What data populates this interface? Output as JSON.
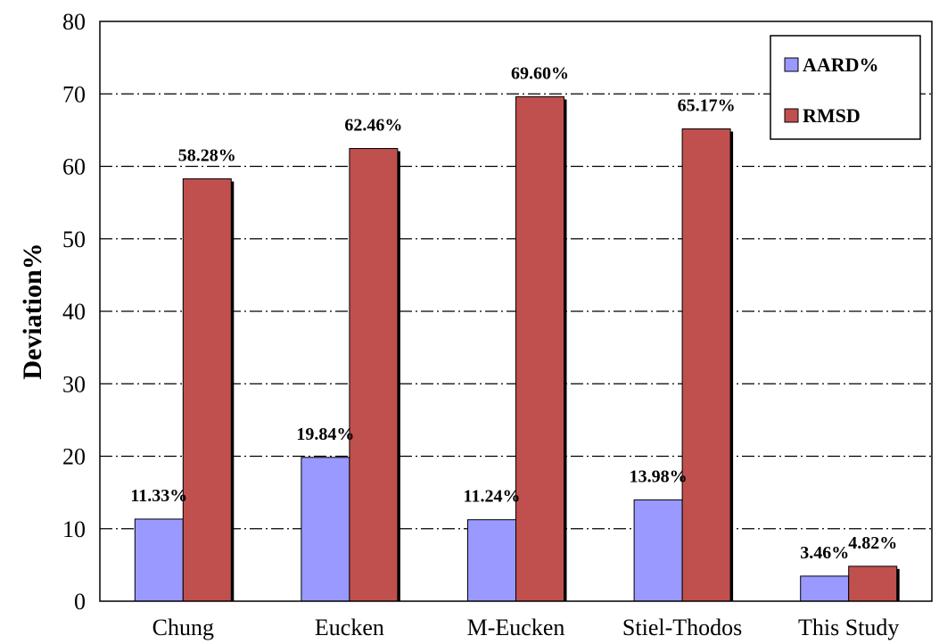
{
  "chart_data": {
    "type": "bar",
    "ylabel": "Deviation%",
    "xlabel": "",
    "ylim": [
      0,
      80
    ],
    "yticks": [
      0,
      10,
      20,
      30,
      40,
      50,
      60,
      70,
      80
    ],
    "grid": true,
    "gridline_style": "dash-dot",
    "legend_position": "top-right",
    "categories": [
      "Chung",
      "Eucken",
      "M-Eucken",
      "Stiel-Thodos",
      "This Study"
    ],
    "series": [
      {
        "name": "AARD%",
        "color": "#9999ff",
        "values": [
          11.33,
          19.84,
          11.24,
          13.98,
          3.46
        ],
        "labels": [
          "11.33%",
          "19.84%",
          "11.24%",
          "13.98%",
          "3.46%"
        ]
      },
      {
        "name": "RMSD",
        "color": "#c0504d",
        "values": [
          58.28,
          62.46,
          69.6,
          65.17,
          4.82
        ],
        "labels": [
          "58.28%",
          "62.46%",
          "69.60%",
          "65.17%",
          "4.82%"
        ]
      }
    ]
  }
}
